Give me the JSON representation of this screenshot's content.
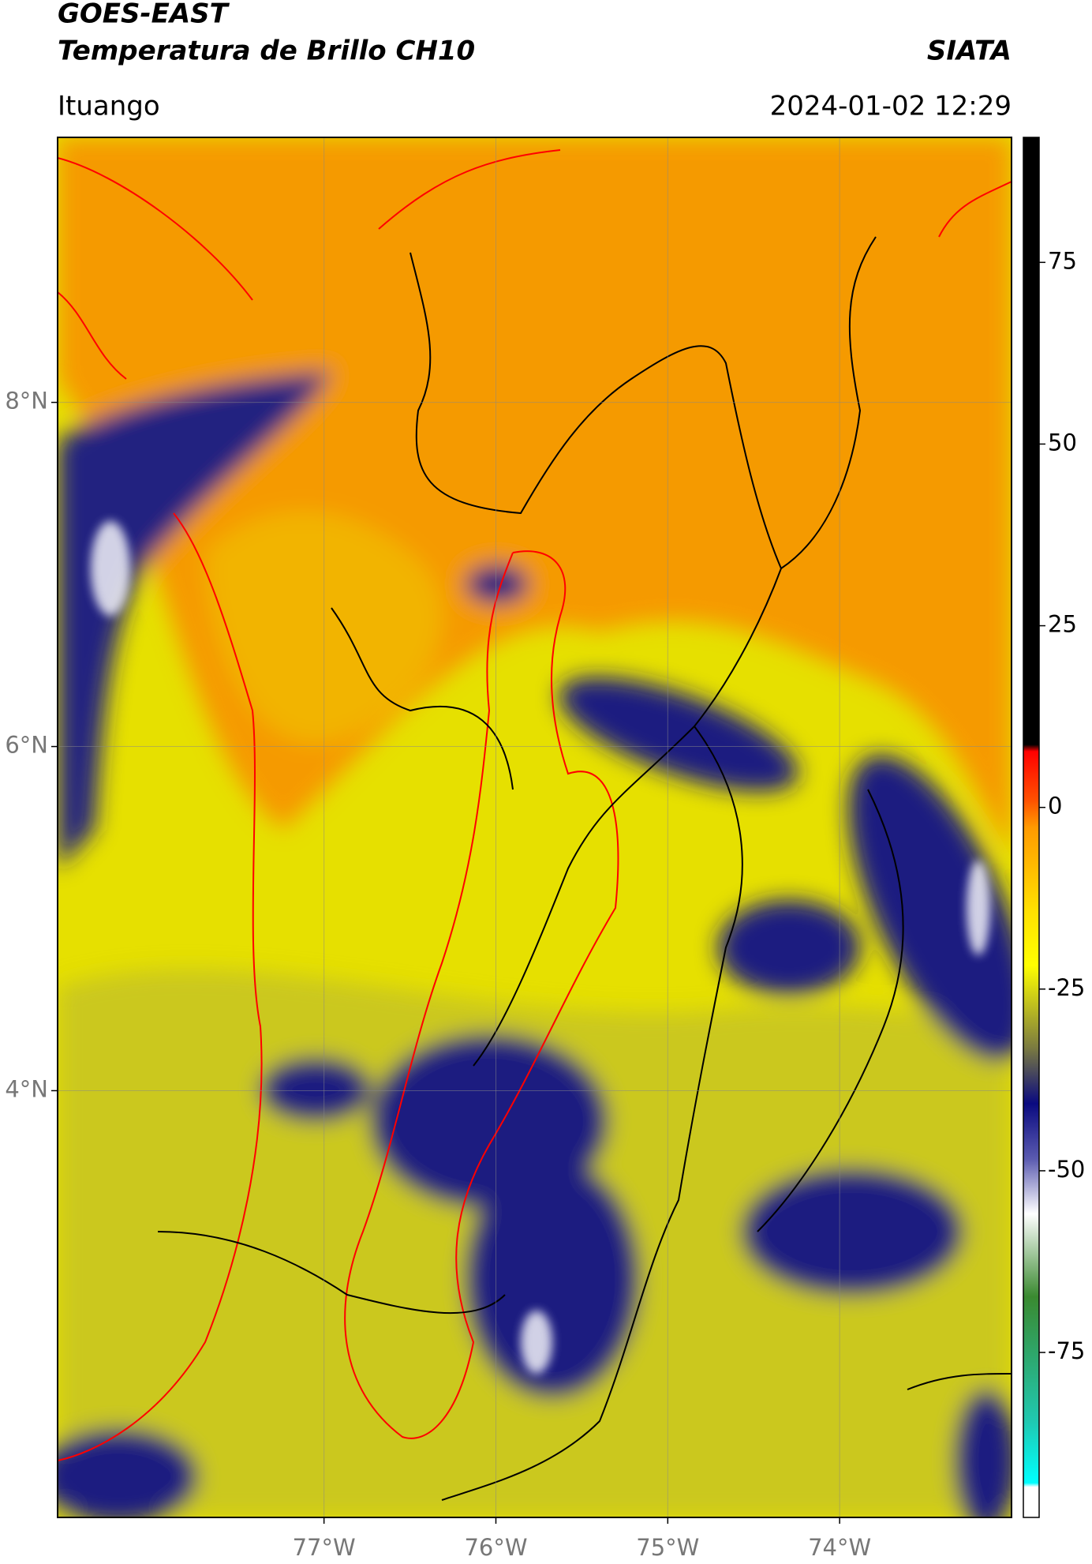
{
  "header": {
    "title": "GOES-EAST",
    "subtitle": "Temperatura de Brillo CH10",
    "source": "SIATA",
    "location": "Ituango",
    "datetime": "2024-01-02 12:29"
  },
  "map": {
    "xlim": [
      -78.55,
      -73.0
    ],
    "ylim": [
      1.52,
      9.54
    ],
    "xticks": [
      {
        "value": -77,
        "label": "77°W"
      },
      {
        "value": -76,
        "label": "76°W"
      },
      {
        "value": -75,
        "label": "75°W"
      },
      {
        "value": -74,
        "label": "74°W"
      }
    ],
    "yticks": [
      {
        "value": 8,
        "label": "8°N"
      },
      {
        "value": 6,
        "label": "6°N"
      },
      {
        "value": 4,
        "label": "4°N"
      }
    ],
    "grid": true
  },
  "colorbar": {
    "lim": [
      -97.7,
      92.2
    ],
    "ticks": [
      75,
      50,
      25,
      0,
      -25,
      -50,
      -75
    ]
  }
}
